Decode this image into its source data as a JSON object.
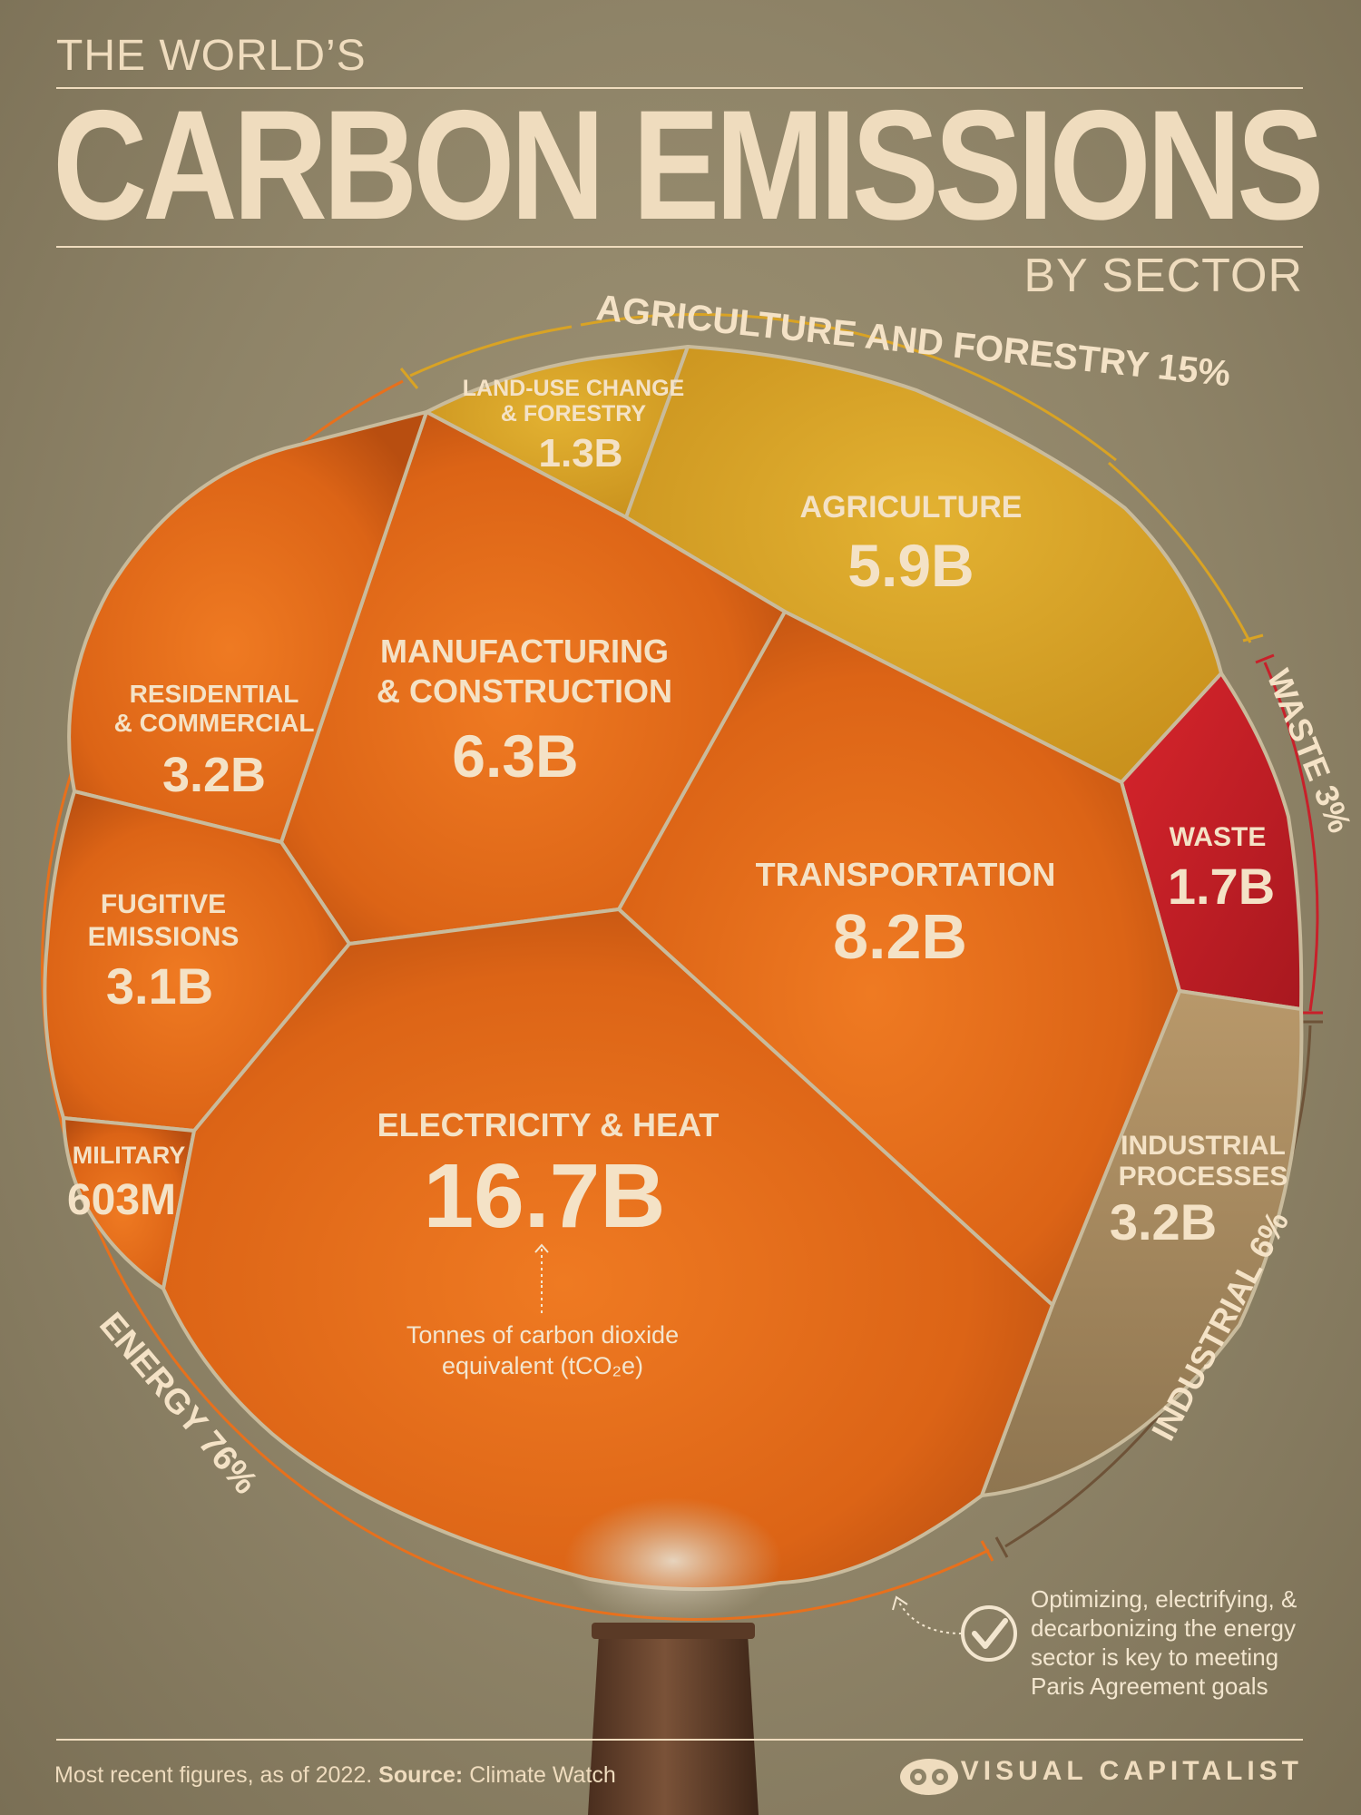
{
  "header": {
    "kicker": "THE WORLD’S",
    "title": "CARBON EMISSIONS",
    "subtitle": "BY SECTOR"
  },
  "chart_data": {
    "type": "voronoi-treemap",
    "title": "THE WORLD’S CARBON EMISSIONS BY SECTOR",
    "unit_note": "Tonnes of carbon dioxide equivalent (tCO₂e)",
    "groups": [
      {
        "name": "ENERGY",
        "share_label": "76%",
        "share": 76,
        "color": "#e8701c",
        "sectors": [
          {
            "name": "Electricity & Heat",
            "label": "ELECTRICITY & HEAT",
            "value": 16.7,
            "value_label": "16.7B"
          },
          {
            "name": "Transportation",
            "label": "TRANSPORTATION",
            "value": 8.2,
            "value_label": "8.2B"
          },
          {
            "name": "Manufacturing & Construction",
            "label": "MANUFACTURING & CONSTRUCTION",
            "value": 6.3,
            "value_label": "6.3B"
          },
          {
            "name": "Residential & Commercial",
            "label": "RESIDENTIAL & COMMERCIAL",
            "value": 3.2,
            "value_label": "3.2B"
          },
          {
            "name": "Fugitive Emissions",
            "label": "FUGITIVE EMISSIONS",
            "value": 3.1,
            "value_label": "3.1B"
          },
          {
            "name": "Military",
            "label": "MILITARY",
            "value": 0.603,
            "value_label": "603M"
          }
        ]
      },
      {
        "name": "AGRICULTURE AND FORESTRY",
        "share_label": "15%",
        "share": 15,
        "color": "#d9a324",
        "sectors": [
          {
            "name": "Agriculture",
            "label": "AGRICULTURE",
            "value": 5.9,
            "value_label": "5.9B"
          },
          {
            "name": "Land-Use Change & Forestry",
            "label": "LAND-USE CHANGE & FORESTRY",
            "value": 1.3,
            "value_label": "1.3B"
          }
        ]
      },
      {
        "name": "WASTE",
        "share_label": "3%",
        "share": 3,
        "color": "#c8202a",
        "sectors": [
          {
            "name": "Waste",
            "label": "WASTE",
            "value": 1.7,
            "value_label": "1.7B"
          }
        ]
      },
      {
        "name": "INDUSTRIAL",
        "share_label": "6%",
        "share": 6,
        "color": "#a98c64",
        "sectors": [
          {
            "name": "Industrial Processes",
            "label": "INDUSTRIAL PROCESSES",
            "value": 3.2,
            "value_label": "3.2B"
          }
        ]
      }
    ]
  },
  "labels": {
    "energy_group": "ENERGY 76%",
    "agri_group": "AGRICULTURE AND FORESTRY 15%",
    "waste_group": "WASTE 3%",
    "industrial_group": "INDUSTRIAL 6%",
    "landuse_line1": "LAND-USE CHANGE",
    "landuse_line2": "& FORESTRY",
    "landuse_value": "1.3B",
    "agriculture": "AGRICULTURE",
    "agriculture_value": "5.9B",
    "residential_line1": "RESIDENTIAL",
    "residential_line2": "& COMMERCIAL",
    "residential_value": "3.2B",
    "manufacturing_line1": "MANUFACTURING",
    "manufacturing_line2": "& CONSTRUCTION",
    "manufacturing_value": "6.3B",
    "transportation": "TRANSPORTATION",
    "transportation_value": "8.2B",
    "waste": "WASTE",
    "waste_value": "1.7B",
    "fugitive_line1": "FUGITIVE",
    "fugitive_line2": "EMISSIONS",
    "fugitive_value": "3.1B",
    "military": "MILITARY",
    "military_value": "603M",
    "electricity": "ELECTRICITY & HEAT",
    "electricity_value": "16.7B",
    "industrial_line1": "INDUSTRIAL",
    "industrial_line2": "PROCESSES",
    "industrial_value": "3.2B",
    "unit_line1": "Tonnes of carbon dioxide",
    "unit_line2": "equivalent (tCO₂e)"
  },
  "callout": {
    "text": "Optimizing, electrifying, & decarbonizing the energy sector is key to meeting Paris Agreement goals"
  },
  "footer": {
    "note": "Most recent figures, as of 2022.",
    "source_label": "Source:",
    "source": "Climate Watch",
    "brand": "VISUAL CAPITALIST"
  },
  "colors": {
    "background": "#8f8468",
    "text": "#efdcbe",
    "energy": "#e8701c",
    "agriculture": "#d9a324",
    "waste": "#c8202a",
    "industrial": "#a98c64"
  }
}
